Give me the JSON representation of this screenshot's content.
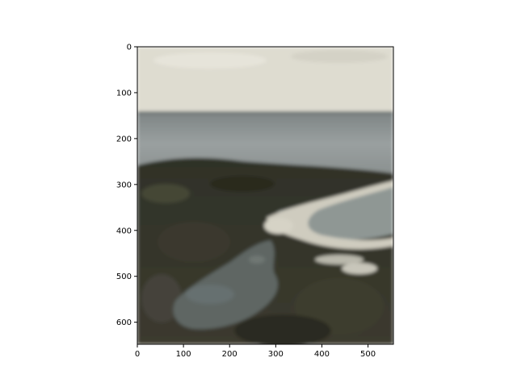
{
  "image_axes": {
    "x_range": [
      0,
      555
    ],
    "y_range": [
      0,
      648
    ],
    "y_inverted": true,
    "x_ticks": [
      0,
      100,
      200,
      300,
      400,
      500
    ],
    "y_ticks": [
      0,
      100,
      200,
      300,
      400,
      500,
      600
    ],
    "x_tick_labels": [
      "0",
      "100",
      "200",
      "300",
      "400",
      "500"
    ],
    "y_tick_labels": [
      "0",
      "100",
      "200",
      "300",
      "400",
      "500",
      "600"
    ]
  },
  "scene": {
    "sky_color": "#dedcd0",
    "sea_color": "#8e9595",
    "land_color": "#34342a",
    "lagoon_color": "#5e6663",
    "beach_color": "#cfccbf"
  }
}
